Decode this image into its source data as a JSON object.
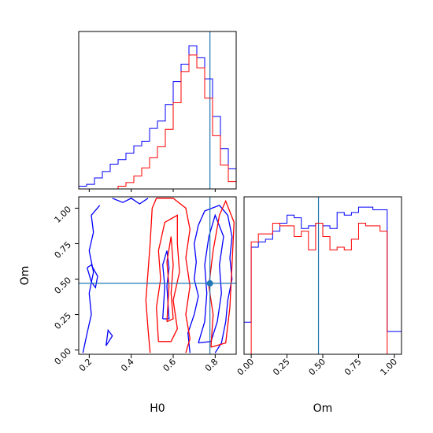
{
  "chart_data": [
    {
      "panel": "H0 marginal",
      "type": "histogram",
      "xlim": [
        0.15,
        0.9
      ],
      "truth_line": 0.775,
      "x_edges": [
        0.15,
        0.1875,
        0.225,
        0.2625,
        0.3,
        0.3375,
        0.375,
        0.4125,
        0.45,
        0.4875,
        0.525,
        0.5625,
        0.6,
        0.6375,
        0.675,
        0.7125,
        0.75,
        0.7875,
        0.825,
        0.8625,
        0.9
      ],
      "series": [
        {
          "color": "#0000ff",
          "values": [
            0.3,
            0.5,
            1.2,
            1.9,
            2.7,
            3.2,
            3.9,
            4.7,
            5.2,
            6.6,
            7.4,
            9.2,
            11.7,
            13.6,
            15.6,
            14.3,
            12.0,
            7.9,
            4.4,
            2.2
          ]
        },
        {
          "color": "#ff0000",
          "values": [
            0.0,
            0.0,
            0.0,
            0.0,
            0.0,
            0.3,
            0.7,
            1.4,
            2.3,
            3.4,
            4.6,
            6.5,
            9.4,
            12.8,
            14.6,
            13.2,
            9.9,
            5.8,
            2.6,
            0.8
          ]
        }
      ]
    },
    {
      "panel": "Om marginal",
      "type": "histogram",
      "xlabel": "Om",
      "xticks": [
        "0.00",
        "0.25",
        "0.50",
        "0.75",
        "1.00"
      ],
      "xlim": [
        -0.05,
        1.05
      ],
      "truth_line": 0.47,
      "x_edges": [
        -0.05,
        0.0,
        0.05,
        0.1,
        0.15,
        0.2,
        0.25,
        0.3,
        0.35,
        0.4,
        0.45,
        0.5,
        0.55,
        0.6,
        0.65,
        0.7,
        0.75,
        0.8,
        0.85,
        0.9,
        0.95,
        1.0,
        1.05
      ],
      "series": [
        {
          "color": "#0000ff",
          "values": [
            1.2,
            4.0,
            4.2,
            4.3,
            4.6,
            4.9,
            5.2,
            5.1,
            4.7,
            4.8,
            4.9,
            4.8,
            4.7,
            5.3,
            5.2,
            5.3,
            5.5,
            5.5,
            5.4,
            5.4,
            0.85,
            0.85
          ]
        },
        {
          "color": "#ff0000",
          "values": [
            0.0,
            4.2,
            4.5,
            4.5,
            4.9,
            4.8,
            4.8,
            4.4,
            4.6,
            3.9,
            4.9,
            4.4,
            3.9,
            4.0,
            3.9,
            4.3,
            4.9,
            4.8,
            4.8,
            4.6,
            0.0,
            0.0
          ]
        }
      ]
    },
    {
      "panel": "H0 vs Om joint",
      "type": "contour",
      "xlabel": "H0",
      "ylabel": "Om",
      "xticks": [
        "0.2",
        "0.4",
        "0.6",
        "0.8"
      ],
      "yticks": [
        "0.00",
        "0.25",
        "0.50",
        "0.75",
        "1.00"
      ],
      "xlim": [
        0.15,
        0.9
      ],
      "ylim": [
        -0.03,
        1.08
      ],
      "truth_point": [
        0.775,
        0.47
      ],
      "series": [
        {
          "color": "#0000ff",
          "contours": [
            [
              [
                0.17,
                -0.02
              ],
              [
                0.19,
                0.12
              ],
              [
                0.21,
                0.25
              ],
              [
                0.2,
                0.4
              ],
              [
                0.22,
                0.55
              ],
              [
                0.2,
                0.7
              ],
              [
                0.22,
                0.83
              ],
              [
                0.21,
                0.95
              ],
              [
                0.25,
                1.02
              ]
            ],
            [
              [
                0.31,
                1.07
              ],
              [
                0.36,
                1.04
              ],
              [
                0.4,
                1.07
              ],
              [
                0.44,
                1.03
              ],
              [
                0.48,
                1.07
              ]
            ],
            [
              [
                0.19,
                0.58
              ],
              [
                0.21,
                0.48
              ],
              [
                0.23,
                0.44
              ],
              [
                0.24,
                0.52
              ],
              [
                0.21,
                0.6
              ],
              [
                0.19,
                0.58
              ]
            ],
            [
              [
                0.28,
                0.03
              ],
              [
                0.29,
                0.14
              ],
              [
                0.31,
                0.1
              ],
              [
                0.28,
                0.03
              ]
            ],
            [
              [
                0.68,
                -0.02
              ],
              [
                0.67,
                0.12
              ],
              [
                0.7,
                0.25
              ],
              [
                0.72,
                0.38
              ],
              [
                0.7,
                0.5
              ],
              [
                0.71,
                0.62
              ],
              [
                0.7,
                0.75
              ],
              [
                0.72,
                0.88
              ],
              [
                0.75,
                0.98
              ],
              [
                0.82,
                1.02
              ],
              [
                0.86,
                0.95
              ],
              [
                0.88,
                0.8
              ],
              [
                0.87,
                0.65
              ],
              [
                0.88,
                0.5
              ],
              [
                0.86,
                0.35
              ],
              [
                0.85,
                0.2
              ],
              [
                0.83,
                0.05
              ],
              [
                0.8,
                -0.02
              ]
            ],
            [
              [
                0.72,
                0.05
              ],
              [
                0.75,
                0.2
              ],
              [
                0.76,
                0.4
              ],
              [
                0.75,
                0.6
              ],
              [
                0.77,
                0.8
              ],
              [
                0.8,
                0.95
              ],
              [
                0.84,
                0.8
              ],
              [
                0.82,
                0.6
              ],
              [
                0.83,
                0.4
              ],
              [
                0.81,
                0.2
              ],
              [
                0.78,
                0.06
              ],
              [
                0.72,
                0.05
              ]
            ],
            [
              [
                0.55,
                0.22
              ],
              [
                0.56,
                0.45
              ],
              [
                0.55,
                0.6
              ],
              [
                0.57,
                0.7
              ],
              [
                0.58,
                0.58
              ],
              [
                0.57,
                0.45
              ],
              [
                0.58,
                0.22
              ],
              [
                0.55,
                0.22
              ]
            ]
          ]
        },
        {
          "color": "#ff0000",
          "contours": [
            [
              [
                0.49,
                -0.02
              ],
              [
                0.48,
                0.15
              ],
              [
                0.47,
                0.35
              ],
              [
                0.48,
                0.55
              ],
              [
                0.49,
                0.75
              ],
              [
                0.5,
                1.0
              ],
              [
                0.52,
                1.07
              ],
              [
                0.6,
                1.07
              ],
              [
                0.66,
                1.0
              ],
              [
                0.68,
                0.85
              ],
              [
                0.66,
                0.65
              ],
              [
                0.68,
                0.45
              ],
              [
                0.66,
                0.25
              ],
              [
                0.68,
                0.08
              ],
              [
                0.66,
                -0.02
              ]
            ],
            [
              [
                0.53,
                0.06
              ],
              [
                0.52,
                0.3
              ],
              [
                0.54,
                0.5
              ],
              [
                0.53,
                0.7
              ],
              [
                0.56,
                0.9
              ],
              [
                0.62,
                0.95
              ],
              [
                0.62,
                0.75
              ],
              [
                0.63,
                0.55
              ],
              [
                0.6,
                0.35
              ],
              [
                0.62,
                0.15
              ],
              [
                0.59,
                0.06
              ],
              [
                0.53,
                0.06
              ]
            ],
            [
              [
                0.57,
                0.2
              ],
              [
                0.58,
                0.45
              ],
              [
                0.57,
                0.62
              ],
              [
                0.59,
                0.8
              ],
              [
                0.6,
                0.6
              ],
              [
                0.59,
                0.4
              ],
              [
                0.6,
                0.22
              ],
              [
                0.57,
                0.2
              ]
            ],
            [
              [
                0.78,
                0.02
              ],
              [
                0.79,
                0.25
              ],
              [
                0.77,
                0.45
              ],
              [
                0.79,
                0.7
              ],
              [
                0.82,
                0.95
              ],
              [
                0.85,
                1.05
              ],
              [
                0.89,
                0.9
              ],
              [
                0.88,
                0.6
              ],
              [
                0.87,
                0.3
              ],
              [
                0.85,
                0.05
              ],
              [
                0.78,
                0.02
              ]
            ]
          ]
        }
      ]
    }
  ],
  "colors": {
    "blue": "#0000ff",
    "red": "#ff0000",
    "truth": "#1f77b4",
    "axes": "#000000"
  }
}
